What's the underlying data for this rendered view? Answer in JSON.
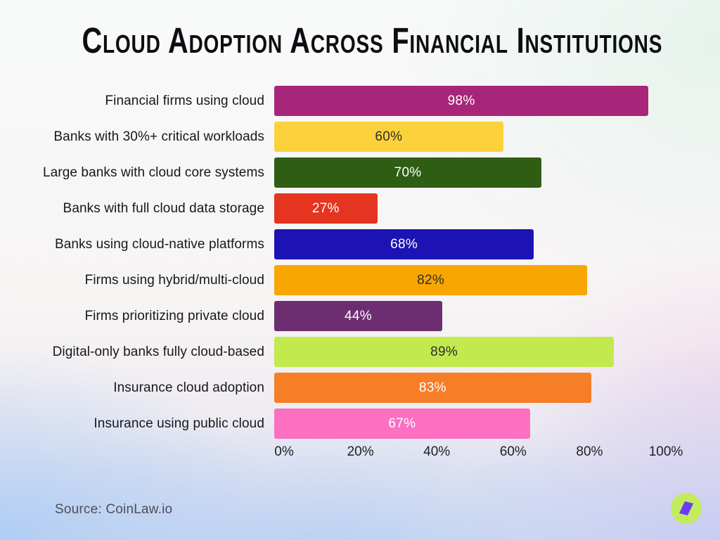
{
  "title": "Cloud Adoption Across Financial Institutions",
  "source": "Source: CoinLaw.io",
  "chart_data": {
    "type": "bar",
    "orientation": "horizontal",
    "title": "Cloud Adoption Across Financial Institutions",
    "xlabel": "",
    "ylabel": "",
    "xlim": [
      0,
      100
    ],
    "x_ticks": [
      "0%",
      "20%",
      "40%",
      "60%",
      "80%",
      "100%"
    ],
    "x_tick_values": [
      0,
      20,
      40,
      60,
      80,
      100
    ],
    "grid": false,
    "legend": "none",
    "categories": [
      "Financial firms using cloud",
      "Banks with 30%+ critical workloads",
      "Large banks with cloud core systems",
      "Banks with full cloud data storage",
      "Banks using cloud-native platforms",
      "Firms using hybrid/multi-cloud",
      "Firms prioritizing private cloud",
      "Digital-only banks fully cloud-based",
      "Insurance cloud adoption",
      "Insurance using public cloud"
    ],
    "values": [
      98,
      60,
      70,
      27,
      68,
      82,
      44,
      89,
      83,
      67
    ],
    "value_labels": [
      "98%",
      "60%",
      "70%",
      "27%",
      "68%",
      "82%",
      "44%",
      "89%",
      "83%",
      "67%"
    ],
    "bar_colors": [
      "#A82679",
      "#FBD23C",
      "#2F5D13",
      "#E53420",
      "#1D13B4",
      "#F8A602",
      "#6C2E71",
      "#C2EA4E",
      "#F57E27",
      "#FC6FC1"
    ],
    "value_label_colors": [
      "#ffffff",
      "#2d2d2d",
      "#ffffff",
      "#ffffff",
      "#ffffff",
      "#2d2d2d",
      "#ffffff",
      "#2d2d2d",
      "#ffffff",
      "#ffffff"
    ]
  },
  "logo": {
    "name": "coinlaw-logo",
    "background_color": "#6C3BF4",
    "circle_color": "#C3EB5E"
  }
}
